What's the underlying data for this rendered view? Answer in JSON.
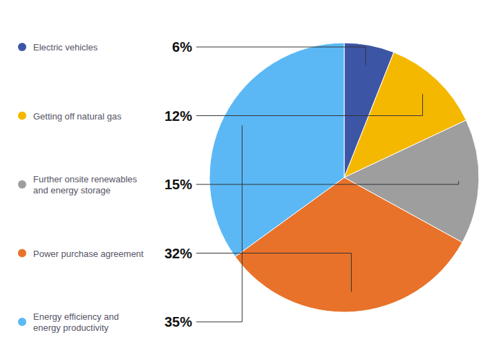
{
  "chart_data": {
    "type": "pie",
    "categories": [
      "Electric vehicles",
      "Getting off natural gas",
      "Further onsite renewables\nand energy storage",
      "Power purchase agreement",
      "Energy efficiency and\nenergy productivity"
    ],
    "values": [
      6,
      12,
      15,
      32,
      35
    ],
    "value_labels": [
      "6%",
      "12%",
      "15%",
      "32%",
      "35%"
    ],
    "colors": [
      "#3d55a5",
      "#f5b800",
      "#9e9e9e",
      "#e8722a",
      "#5bb8f5"
    ],
    "data_labels": true
  }
}
